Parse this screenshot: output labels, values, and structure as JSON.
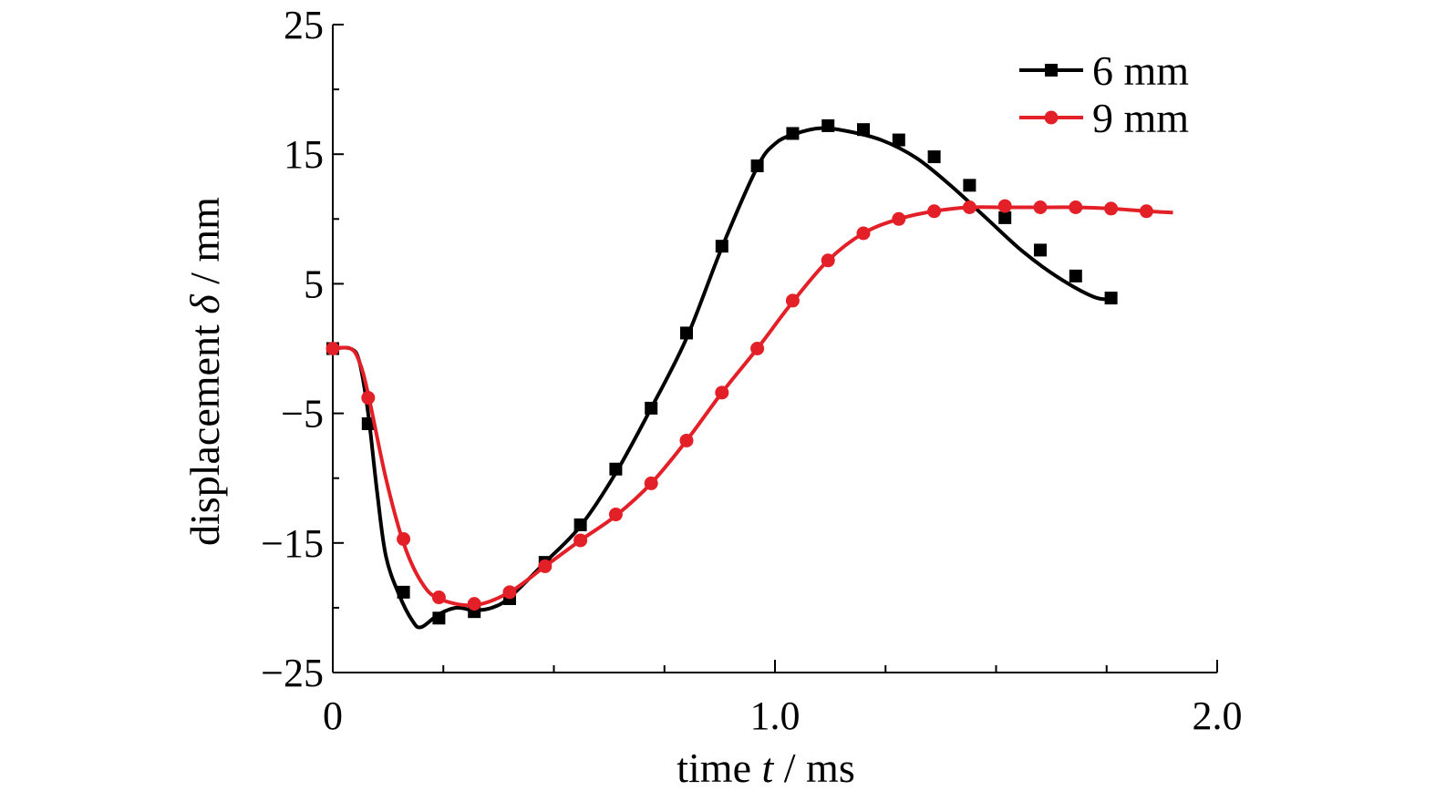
{
  "chart_data": {
    "type": "line",
    "xlabel": {
      "prefix": "time ",
      "symbol": "t",
      "suffix": " / ms"
    },
    "ylabel": {
      "prefix": "displacement ",
      "symbol": "δ",
      "suffix": " / mm"
    },
    "xlim": [
      0,
      2.0
    ],
    "ylim": [
      -25,
      25
    ],
    "x_ticks": [
      {
        "value": 0,
        "label": "0"
      },
      {
        "value": 1.0,
        "label": "1.0"
      },
      {
        "value": 2.0,
        "label": "2.0"
      }
    ],
    "x_minor_step": 0.25,
    "y_ticks": [
      {
        "value": -25,
        "label": "−25"
      },
      {
        "value": -15,
        "label": "−15"
      },
      {
        "value": -5,
        "label": "−5"
      },
      {
        "value": 5,
        "label": "5"
      },
      {
        "value": 15,
        "label": "15"
      },
      {
        "value": 25,
        "label": "25"
      }
    ],
    "y_minor_step": 5,
    "grid": false,
    "legend_position": "top-right",
    "series": [
      {
        "name": "6 mm",
        "color": "#000000",
        "marker": "square",
        "line": [
          [
            0,
            0
          ],
          [
            0.04,
            0
          ],
          [
            0.06,
            -1
          ],
          [
            0.08,
            -5
          ],
          [
            0.1,
            -11
          ],
          [
            0.12,
            -16
          ],
          [
            0.15,
            -19
          ],
          [
            0.18,
            -21
          ],
          [
            0.2,
            -21.5
          ],
          [
            0.24,
            -20.5
          ],
          [
            0.28,
            -20
          ],
          [
            0.32,
            -20.2
          ],
          [
            0.36,
            -20
          ],
          [
            0.4,
            -19.2
          ],
          [
            0.48,
            -16.5
          ],
          [
            0.56,
            -13.7
          ],
          [
            0.64,
            -9.6
          ],
          [
            0.72,
            -4.6
          ],
          [
            0.8,
            0.8
          ],
          [
            0.88,
            7.8
          ],
          [
            0.96,
            14
          ],
          [
            1.0,
            15.8
          ],
          [
            1.04,
            16.5
          ],
          [
            1.1,
            17
          ],
          [
            1.16,
            16.8
          ],
          [
            1.24,
            16.1
          ],
          [
            1.32,
            14.7
          ],
          [
            1.4,
            12.5
          ],
          [
            1.48,
            10
          ],
          [
            1.56,
            7.5
          ],
          [
            1.64,
            5.5
          ],
          [
            1.72,
            4
          ],
          [
            1.76,
            3.8
          ]
        ],
        "markers": [
          [
            0,
            0
          ],
          [
            0.08,
            -5.8
          ],
          [
            0.16,
            -18.8
          ],
          [
            0.24,
            -20.8
          ],
          [
            0.32,
            -20.3
          ],
          [
            0.4,
            -19.3
          ],
          [
            0.48,
            -16.5
          ],
          [
            0.56,
            -13.6
          ],
          [
            0.64,
            -9.3
          ],
          [
            0.72,
            -4.6
          ],
          [
            0.8,
            1.2
          ],
          [
            0.88,
            7.9
          ],
          [
            0.96,
            14.1
          ],
          [
            1.04,
            16.6
          ],
          [
            1.12,
            17.2
          ],
          [
            1.2,
            16.9
          ],
          [
            1.28,
            16.1
          ],
          [
            1.36,
            14.8
          ],
          [
            1.44,
            12.6
          ],
          [
            1.52,
            10.1
          ],
          [
            1.6,
            7.6
          ],
          [
            1.68,
            5.6
          ],
          [
            1.76,
            3.9
          ]
        ]
      },
      {
        "name": "9 mm",
        "color": "#e32028",
        "marker": "circle",
        "line": [
          [
            0,
            0
          ],
          [
            0.04,
            0
          ],
          [
            0.06,
            -1
          ],
          [
            0.08,
            -3.5
          ],
          [
            0.12,
            -10
          ],
          [
            0.16,
            -15
          ],
          [
            0.2,
            -18
          ],
          [
            0.24,
            -19.3
          ],
          [
            0.32,
            -19.8
          ],
          [
            0.4,
            -18.8
          ],
          [
            0.48,
            -16.8
          ],
          [
            0.56,
            -14.8
          ],
          [
            0.64,
            -12.9
          ],
          [
            0.72,
            -10.4
          ],
          [
            0.8,
            -7.1
          ],
          [
            0.88,
            -3.4
          ],
          [
            0.96,
            0
          ],
          [
            1.04,
            3.6
          ],
          [
            1.12,
            6.8
          ],
          [
            1.2,
            8.9
          ],
          [
            1.28,
            10
          ],
          [
            1.36,
            10.6
          ],
          [
            1.44,
            10.9
          ],
          [
            1.52,
            10.9
          ],
          [
            1.6,
            10.9
          ],
          [
            1.68,
            10.9
          ],
          [
            1.76,
            10.8
          ],
          [
            1.84,
            10.6
          ],
          [
            1.9,
            10.5
          ]
        ],
        "markers": [
          [
            0,
            0
          ],
          [
            0.08,
            -3.8
          ],
          [
            0.16,
            -14.7
          ],
          [
            0.24,
            -19.2
          ],
          [
            0.32,
            -19.7
          ],
          [
            0.4,
            -18.8
          ],
          [
            0.48,
            -16.8
          ],
          [
            0.56,
            -14.8
          ],
          [
            0.64,
            -12.8
          ],
          [
            0.72,
            -10.4
          ],
          [
            0.8,
            -7.1
          ],
          [
            0.88,
            -3.4
          ],
          [
            0.96,
            0
          ],
          [
            1.04,
            3.7
          ],
          [
            1.12,
            6.8
          ],
          [
            1.2,
            8.9
          ],
          [
            1.28,
            10
          ],
          [
            1.36,
            10.6
          ],
          [
            1.44,
            10.9
          ],
          [
            1.52,
            11
          ],
          [
            1.6,
            10.9
          ],
          [
            1.68,
            10.9
          ],
          [
            1.76,
            10.8
          ],
          [
            1.84,
            10.6
          ]
        ]
      }
    ]
  }
}
